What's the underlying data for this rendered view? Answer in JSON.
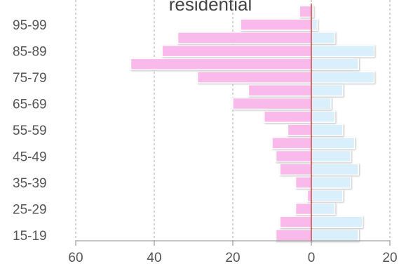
{
  "chart_data": {
    "type": "pyramid",
    "title": "residential",
    "categories": [
      "15-19",
      null,
      "25-29",
      null,
      "35-39",
      null,
      "45-49",
      null,
      "55-59",
      null,
      "65-69",
      null,
      "75-79",
      null,
      "85-89",
      null,
      "95-99",
      null
    ],
    "series": [
      {
        "color": "#f9b9ea",
        "side": "left",
        "values": [
          9,
          8,
          4,
          1,
          4,
          8,
          9,
          10,
          6,
          12,
          20,
          16,
          29,
          46,
          38,
          34,
          18,
          3
        ]
      },
      {
        "color": "#d9effb",
        "side": "right",
        "values": [
          12,
          13,
          6,
          8,
          10,
          12,
          10,
          11,
          8,
          6,
          5,
          8,
          16,
          12,
          16,
          6,
          1.5,
          0.5
        ]
      }
    ],
    "xlim": [
      -60,
      20
    ],
    "xticks": [
      {
        "value": -60,
        "label": "60"
      },
      {
        "value": -40,
        "label": "40"
      },
      {
        "value": -20,
        "label": "20"
      },
      0,
      20
    ],
    "grid": true
  }
}
